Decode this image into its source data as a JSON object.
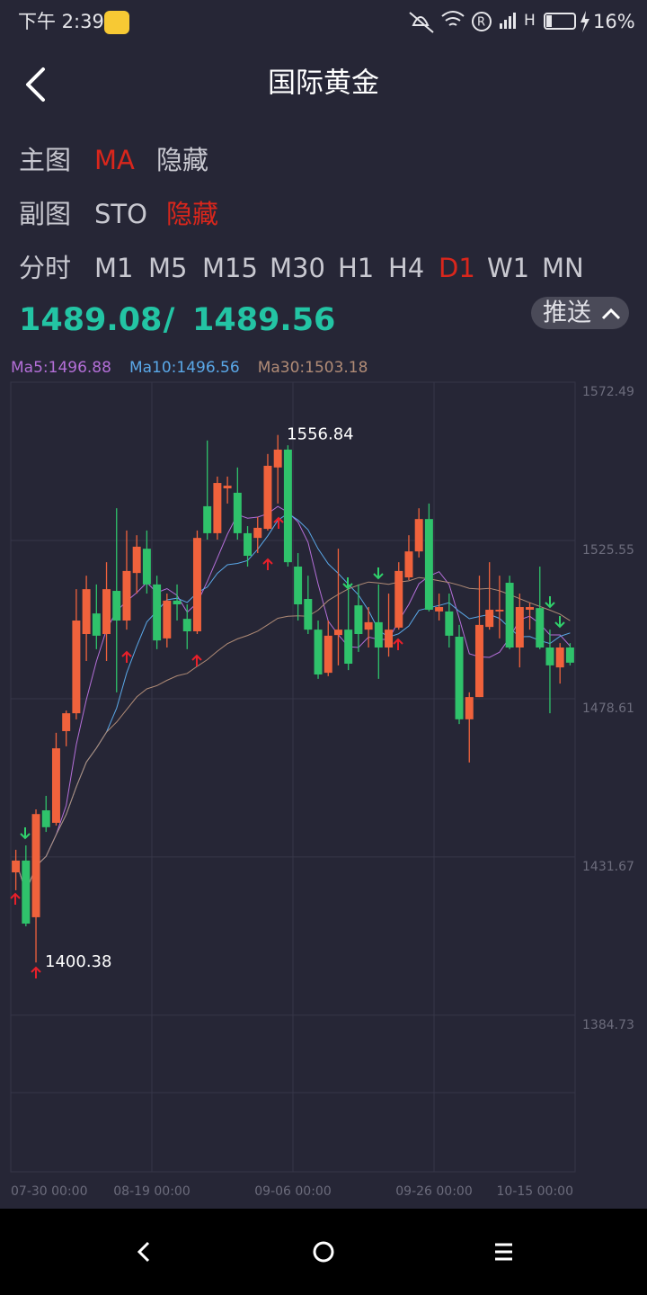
{
  "status_bar": {
    "time": "下午 2:39",
    "battery": "16%"
  },
  "header": {
    "title": "国际黄金"
  },
  "main_indicator": {
    "label": "主图",
    "options": [
      "MA",
      "隐藏"
    ],
    "selected": 0
  },
  "sub_indicator": {
    "label": "副图",
    "options": [
      "STO",
      "隐藏"
    ],
    "selected": 1
  },
  "periods": {
    "label": "分时",
    "options": [
      "M1",
      "M5",
      "M15",
      "M30",
      "H1",
      "H4",
      "D1",
      "W1",
      "MN"
    ],
    "selected": 6
  },
  "quote": {
    "bid": "1489.08",
    "separator": "/",
    "ask": "1489.56"
  },
  "push_button": "推送",
  "chart_data": {
    "type": "candlestick",
    "ma_labels": [
      {
        "text": "Ma5:1496.88",
        "color": "#b46fd8"
      },
      {
        "text": "Ma10:1496.56",
        "color": "#5aa8e8"
      },
      {
        "text": "Ma30:1503.18",
        "color": "#b08b76"
      }
    ],
    "up_color": "#f0623c",
    "down_color": "#2fc26b",
    "categories": [
      "07-30 00:00",
      null,
      null,
      null,
      null,
      null,
      null,
      null,
      null,
      null,
      null,
      null,
      null,
      null,
      "08-19 00:00",
      null,
      null,
      null,
      null,
      null,
      null,
      null,
      null,
      null,
      null,
      null,
      null,
      null,
      "09-06 00:00",
      null,
      null,
      null,
      null,
      null,
      null,
      null,
      null,
      null,
      null,
      null,
      null,
      null,
      "09-26 00:00",
      null,
      null,
      null,
      null,
      null,
      null,
      null,
      null,
      null,
      null,
      null,
      null,
      "10-15 00:00"
    ],
    "open": [
      1427.1,
      1430.6,
      1413.8,
      1445.5,
      1441.8,
      1469.0,
      1474.3,
      1497.8,
      1503.9,
      1497.8,
      1510.6,
      1501.8,
      1515.9,
      1523.1,
      1512.5,
      1496.5,
      1507.7,
      1502.3,
      1498.6,
      1535.7,
      1527.7,
      1541.0,
      1539.7,
      1527.7,
      1526.3,
      1529.0,
      1547.2,
      1552.5,
      1517.8,
      1508.2,
      1499.1,
      1486.3,
      1497.5,
      1499.1,
      1506.3,
      1499.1,
      1501.3,
      1493.8,
      1499.7,
      1514.6,
      1522.3,
      1531.9,
      1504.5,
      1504.5,
      1497.0,
      1472.5,
      1479.1,
      1499.9,
      1504.5,
      1513.0,
      1493.8,
      1505.0,
      1505.5,
      1493.8,
      1487.9,
      1493.8
    ],
    "high": [
      1433.8,
      1435.1,
      1445.8,
      1449.8,
      1468.5,
      1475.1,
      1511.1,
      1515.1,
      1512.5,
      1519.1,
      1535.1,
      1528.5,
      1527.1,
      1528.5,
      1515.1,
      1509.8,
      1512.5,
      1506.6,
      1528.5,
      1555.2,
      1544.5,
      1544.5,
      1547.2,
      1529.8,
      1532.5,
      1551.2,
      1556.84,
      1553.8,
      1521.8,
      1515.1,
      1501.8,
      1501.8,
      1523.1,
      1512.5,
      1512.5,
      1505.8,
      1512.5,
      1509.8,
      1519.1,
      1527.1,
      1535.1,
      1536.5,
      1509.8,
      1509.8,
      1500.5,
      1480.5,
      1515.1,
      1519.1,
      1515.1,
      1515.1,
      1509.8,
      1507.1,
      1517.8,
      1499.1,
      1495.1,
      1495.1
    ],
    "low": [
      1421.8,
      1411.1,
      1400.38,
      1439.1,
      1441.0,
      1464.5,
      1472.5,
      1489.8,
      1493.3,
      1489.8,
      1480.5,
      1499.1,
      1509.8,
      1509.8,
      1493.3,
      1493.8,
      1501.8,
      1493.3,
      1497.8,
      1525.8,
      1525.8,
      1536.5,
      1525.8,
      1517.8,
      1521.8,
      1528.5,
      1536.5,
      1517.8,
      1501.8,
      1497.8,
      1484.5,
      1485.3,
      1488.5,
      1487.1,
      1492.5,
      1493.8,
      1484.5,
      1491.1,
      1499.1,
      1513.8,
      1520.5,
      1504.5,
      1501.8,
      1493.8,
      1471.1,
      1459.7,
      1479.1,
      1499.1,
      1496.5,
      1493.3,
      1487.9,
      1499.1,
      1493.3,
      1474.3,
      1483.1,
      1488.5
    ],
    "close": [
      1430.6,
      1411.9,
      1444.4,
      1440.5,
      1463.9,
      1474.3,
      1501.8,
      1511.1,
      1497.3,
      1511.1,
      1501.8,
      1516.5,
      1523.7,
      1512.5,
      1495.9,
      1507.7,
      1506.6,
      1498.6,
      1526.3,
      1527.7,
      1542.6,
      1541.8,
      1527.7,
      1521.0,
      1529.3,
      1547.7,
      1552.5,
      1519.1,
      1506.6,
      1499.1,
      1485.8,
      1497.3,
      1499.1,
      1489.0,
      1497.8,
      1501.3,
      1493.8,
      1499.1,
      1516.5,
      1522.3,
      1531.9,
      1505.0,
      1505.8,
      1497.3,
      1472.5,
      1479.1,
      1500.5,
      1505.0,
      1505.0,
      1493.8,
      1505.8,
      1505.8,
      1493.8,
      1488.5,
      1493.8,
      1489.3
    ],
    "high_mark": 26,
    "low_mark": 2,
    "ylim": [
      1338.29,
      1572.49
    ],
    "yticks": [
      1572.49,
      1525.55,
      1478.61,
      1431.67,
      1384.73
    ],
    "grid": true
  }
}
